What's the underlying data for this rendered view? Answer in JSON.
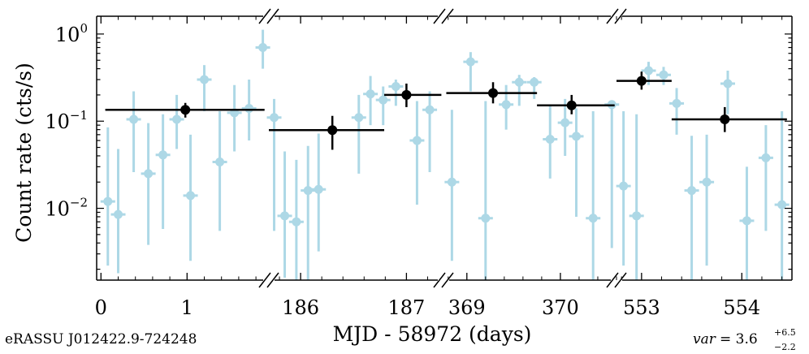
{
  "chart_data": {
    "type": "scatter",
    "ylabel": "Count rate (cts/s)",
    "xlabel": "MJD - 58972 (days)",
    "source_label": "eRASSU J012422.9-724248",
    "var_label": {
      "prefix": "var",
      "equals": "= 3.6",
      "sup": "+6.5",
      "sub": "−2.2"
    },
    "yscale": "log",
    "ylim": [
      0.0015,
      1.6
    ],
    "y_ticks": [
      {
        "value": 0.01,
        "base": "10",
        "exp": "−2"
      },
      {
        "value": 0.1,
        "base": "10",
        "exp": "−1"
      },
      {
        "value": 1,
        "base": "10",
        "exp": "0"
      }
    ],
    "colors": {
      "individual": "#add8e6",
      "binned": "#000000",
      "axis": "#000000"
    },
    "panels": [
      {
        "xlim": [
          -0.05,
          1.95
        ],
        "ticks": [
          {
            "value": 0,
            "label": "0"
          },
          {
            "value": 1,
            "label": "1"
          }
        ],
        "points": [
          {
            "x": 0.08,
            "y": 0.012,
            "lo": 0.0022,
            "hi": 0.085
          },
          {
            "x": 0.2,
            "y": 0.0085,
            "lo": 0.0018,
            "hi": 0.048
          },
          {
            "x": 0.38,
            "y": 0.105,
            "lo": 0.026,
            "hi": 0.22
          },
          {
            "x": 0.55,
            "y": 0.025,
            "lo": 0.0038,
            "hi": 0.095
          },
          {
            "x": 0.72,
            "y": 0.041,
            "lo": 0.0058,
            "hi": 0.12
          },
          {
            "x": 0.88,
            "y": 0.105,
            "lo": 0.048,
            "hi": 0.2
          },
          {
            "x": 1.04,
            "y": 0.014,
            "lo": 0.0025,
            "hi": 0.07
          },
          {
            "x": 1.2,
            "y": 0.3,
            "lo": 0.13,
            "hi": 0.44
          },
          {
            "x": 1.38,
            "y": 0.034,
            "lo": 0.0055,
            "hi": 0.13
          },
          {
            "x": 1.55,
            "y": 0.125,
            "lo": 0.045,
            "hi": 0.26
          },
          {
            "x": 1.72,
            "y": 0.14,
            "lo": 0.06,
            "hi": 0.3
          },
          {
            "x": 1.88,
            "y": 0.7,
            "lo": 0.4,
            "hi": 1.12
          }
        ],
        "binned": [
          {
            "x": 0.98,
            "y": 0.135,
            "lo": 0.11,
            "hi": 0.162,
            "x0": 0.05,
            "x1": 1.9
          }
        ]
      },
      {
        "xlim": [
          185.7,
          187.35
        ],
        "ticks": [
          {
            "value": 186,
            "label": "186"
          },
          {
            "value": 187,
            "label": "187"
          }
        ],
        "points": [
          {
            "x": 185.75,
            "y": 0.11,
            "lo": 0.0055,
            "hi": 0.18
          },
          {
            "x": 185.85,
            "y": 0.0082,
            "lo": 0.0016,
            "hi": 0.045
          },
          {
            "x": 185.96,
            "y": 0.007,
            "lo": 0.0015,
            "hi": 0.036
          },
          {
            "x": 186.07,
            "y": 0.016,
            "lo": 0.0015,
            "hi": 0.052
          },
          {
            "x": 186.17,
            "y": 0.0165,
            "lo": 0.0032,
            "hi": 0.072
          },
          {
            "x": 186.55,
            "y": 0.11,
            "lo": 0.025,
            "hi": 0.2
          },
          {
            "x": 186.66,
            "y": 0.205,
            "lo": 0.09,
            "hi": 0.33
          },
          {
            "x": 186.78,
            "y": 0.175,
            "lo": 0.09,
            "hi": 0.25
          },
          {
            "x": 186.9,
            "y": 0.25,
            "lo": 0.15,
            "hi": 0.3
          },
          {
            "x": 187.1,
            "y": 0.06,
            "lo": 0.011,
            "hi": 0.17
          },
          {
            "x": 187.22,
            "y": 0.135,
            "lo": 0.026,
            "hi": 0.22
          }
        ],
        "binned": [
          {
            "x": 186.3,
            "y": 0.079,
            "lo": 0.047,
            "hi": 0.115,
            "x0": 185.7,
            "x1": 186.79
          },
          {
            "x": 187.0,
            "y": 0.2,
            "lo": 0.145,
            "hi": 0.27,
            "x0": 186.79,
            "x1": 187.33
          }
        ]
      },
      {
        "xlim": [
          368.75,
          370.6
        ],
        "ticks": [
          {
            "value": 369,
            "label": "369"
          },
          {
            "value": 370,
            "label": "370"
          }
        ],
        "points": [
          {
            "x": 368.84,
            "y": 0.02,
            "lo": 0.0025,
            "hi": 0.135
          },
          {
            "x": 369.04,
            "y": 0.48,
            "lo": 0.22,
            "hi": 0.62
          },
          {
            "x": 369.2,
            "y": 0.0077,
            "lo": 0.0015,
            "hi": 0.17
          },
          {
            "x": 369.42,
            "y": 0.155,
            "lo": 0.08,
            "hi": 0.26
          },
          {
            "x": 369.56,
            "y": 0.28,
            "lo": 0.15,
            "hi": 0.34
          },
          {
            "x": 369.72,
            "y": 0.28,
            "lo": 0.18,
            "hi": 0.32
          },
          {
            "x": 369.89,
            "y": 0.062,
            "lo": 0.022,
            "hi": 0.15
          },
          {
            "x": 370.05,
            "y": 0.096,
            "lo": 0.04,
            "hi": 0.18
          },
          {
            "x": 370.17,
            "y": 0.067,
            "lo": 0.008,
            "hi": 0.14
          },
          {
            "x": 370.35,
            "y": 0.0077,
            "lo": 0.0015,
            "hi": 0.13
          },
          {
            "x": 370.55,
            "y": 0.155,
            "lo": 0.0035,
            "hi": 0.16
          }
        ],
        "binned": [
          {
            "x": 369.28,
            "y": 0.21,
            "lo": 0.16,
            "hi": 0.28,
            "x0": 368.78,
            "x1": 369.75
          },
          {
            "x": 370.12,
            "y": 0.152,
            "lo": 0.12,
            "hi": 0.2,
            "x0": 369.75,
            "x1": 370.58
          }
        ]
      },
      {
        "xlim": [
          552.75,
          554.5
        ],
        "ticks": [
          {
            "value": 553,
            "label": "553"
          },
          {
            "value": 554,
            "label": "554"
          }
        ],
        "points": [
          {
            "x": 552.82,
            "y": 0.018,
            "lo": 0.0022,
            "hi": 0.13
          },
          {
            "x": 552.95,
            "y": 0.0082,
            "lo": 0.0015,
            "hi": 0.12
          },
          {
            "x": 553.07,
            "y": 0.38,
            "lo": 0.26,
            "hi": 0.48
          },
          {
            "x": 553.22,
            "y": 0.34,
            "lo": 0.26,
            "hi": 0.42
          },
          {
            "x": 553.35,
            "y": 0.16,
            "lo": 0.07,
            "hi": 0.24
          },
          {
            "x": 553.5,
            "y": 0.016,
            "lo": 0.0015,
            "hi": 0.068
          },
          {
            "x": 553.65,
            "y": 0.02,
            "lo": 0.0022,
            "hi": 0.07
          },
          {
            "x": 553.86,
            "y": 0.27,
            "lo": 0.12,
            "hi": 0.38
          },
          {
            "x": 554.05,
            "y": 0.0072,
            "lo": 0.0015,
            "hi": 0.03
          },
          {
            "x": 554.24,
            "y": 0.038,
            "lo": 0.0055,
            "hi": 0.09
          },
          {
            "x": 554.4,
            "y": 0.011,
            "lo": 0.0015,
            "hi": 0.13
          }
        ],
        "binned": [
          {
            "x": 553.0,
            "y": 0.29,
            "lo": 0.23,
            "hi": 0.37,
            "x0": 552.75,
            "x1": 553.3
          },
          {
            "x": 553.83,
            "y": 0.105,
            "lo": 0.075,
            "hi": 0.145,
            "x0": 553.3,
            "x1": 554.45
          }
        ]
      }
    ]
  }
}
